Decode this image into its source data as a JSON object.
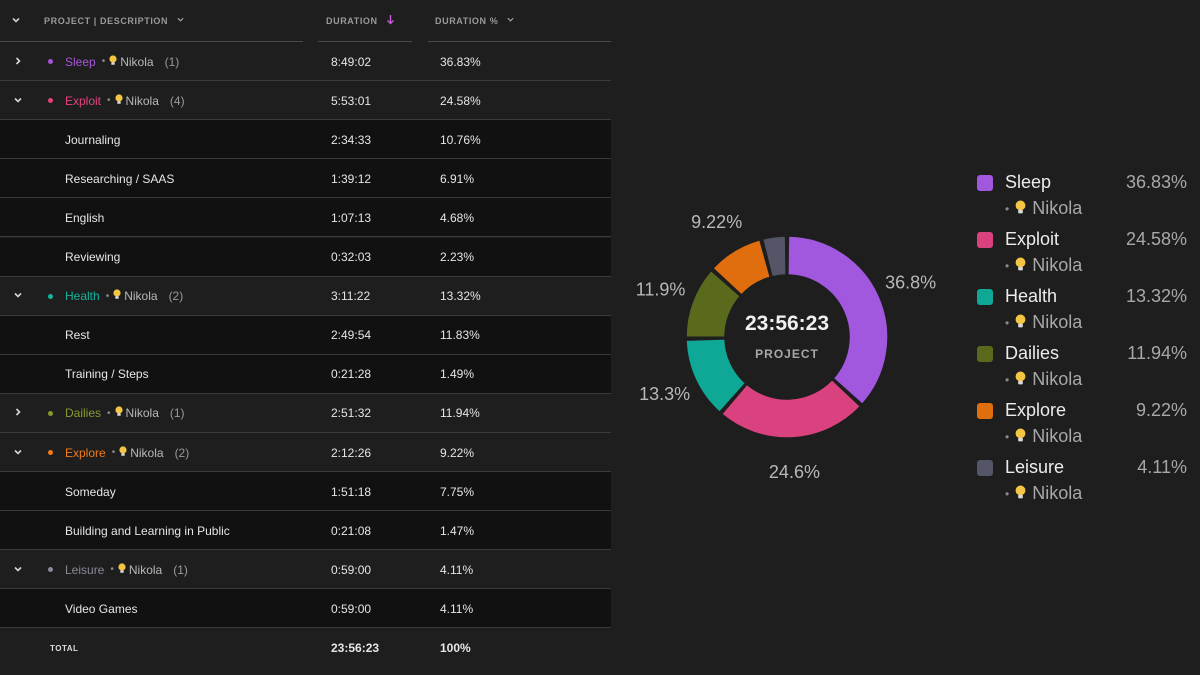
{
  "table": {
    "headers": {
      "project": "PROJECT | DESCRIPTION",
      "duration": "DURATION",
      "percent": "DURATION %"
    },
    "rows": [
      {
        "kind": "group",
        "expanded": false,
        "name": "Sleep",
        "color": "#a855d8",
        "client": "Nikola",
        "count": "(1)",
        "duration": "8:49:02",
        "percent": "36.83%"
      },
      {
        "kind": "group",
        "expanded": true,
        "name": "Exploit",
        "color": "#e4427f",
        "client": "Nikola",
        "count": "(4)",
        "duration": "5:53:01",
        "percent": "24.58%"
      },
      {
        "kind": "child",
        "name": "Journaling",
        "duration": "2:34:33",
        "percent": "10.76%"
      },
      {
        "kind": "child",
        "name": "Researching / SAAS",
        "duration": "1:39:12",
        "percent": "6.91%"
      },
      {
        "kind": "child",
        "name": "English",
        "duration": "1:07:13",
        "percent": "4.68%"
      },
      {
        "kind": "child",
        "name": "Reviewing",
        "duration": "0:32:03",
        "percent": "2.23%"
      },
      {
        "kind": "group",
        "expanded": true,
        "name": "Health",
        "color": "#13b59f",
        "client": "Nikola",
        "count": "(2)",
        "duration": "3:11:22",
        "percent": "13.32%"
      },
      {
        "kind": "child",
        "name": "Rest",
        "duration": "2:49:54",
        "percent": "11.83%"
      },
      {
        "kind": "child",
        "name": "Training / Steps",
        "duration": "0:21:28",
        "percent": "1.49%"
      },
      {
        "kind": "group",
        "expanded": false,
        "name": "Dailies",
        "color": "#8a9a2e",
        "client": "Nikola",
        "count": "(1)",
        "duration": "2:51:32",
        "percent": "11.94%"
      },
      {
        "kind": "group",
        "expanded": true,
        "name": "Explore",
        "color": "#ef7b1a",
        "client": "Nikola",
        "count": "(2)",
        "duration": "2:12:26",
        "percent": "9.22%"
      },
      {
        "kind": "child",
        "name": "Someday",
        "duration": "1:51:18",
        "percent": "7.75%"
      },
      {
        "kind": "child",
        "name": "Building and Learning in Public",
        "duration": "0:21:08",
        "percent": "1.47%"
      },
      {
        "kind": "group",
        "expanded": true,
        "name": "Leisure",
        "color": "#8a8a9a",
        "client": "Nikola",
        "count": "(1)",
        "duration": "0:59:00",
        "percent": "4.11%"
      },
      {
        "kind": "child",
        "name": "Video Games",
        "duration": "0:59:00",
        "percent": "4.11%"
      }
    ],
    "total": {
      "label": "TOTAL",
      "duration": "23:56:23",
      "percent": "100%"
    }
  },
  "chart_data": {
    "type": "pie",
    "center_value": "23:56:23",
    "center_label": "PROJECT",
    "slices": [
      {
        "name": "Sleep",
        "value": 36.83,
        "label": "36.8%",
        "color": "#a157de"
      },
      {
        "name": "Exploit",
        "value": 24.58,
        "label": "24.6%",
        "color": "#d9427e"
      },
      {
        "name": "Health",
        "value": 13.32,
        "label": "13.3%",
        "color": "#0fa795"
      },
      {
        "name": "Dailies",
        "value": 11.94,
        "label": "11.9%",
        "color": "#5a6a1c"
      },
      {
        "name": "Explore",
        "value": 9.22,
        "label": "9.22%",
        "color": "#e06e0f"
      },
      {
        "name": "Leisure",
        "value": 4.11,
        "label": "",
        "color": "#545566"
      }
    ]
  },
  "legend": [
    {
      "name": "Sleep",
      "client": "Nikola",
      "percent": "36.83%",
      "color": "#a157de"
    },
    {
      "name": "Exploit",
      "client": "Nikola",
      "percent": "24.58%",
      "color": "#d9427e"
    },
    {
      "name": "Health",
      "client": "Nikola",
      "percent": "13.32%",
      "color": "#0fa795"
    },
    {
      "name": "Dailies",
      "client": "Nikola",
      "percent": "11.94%",
      "color": "#5a6a1c"
    },
    {
      "name": "Explore",
      "client": "Nikola",
      "percent": "9.22%",
      "color": "#e06e0f"
    },
    {
      "name": "Leisure",
      "client": "Nikola",
      "percent": "4.11%",
      "color": "#545566"
    }
  ],
  "icons": {
    "expand": "chevron-right-icon",
    "collapse": "chevron-down-icon",
    "sort": "arrow-down-icon",
    "client": "lightbulb-icon"
  }
}
